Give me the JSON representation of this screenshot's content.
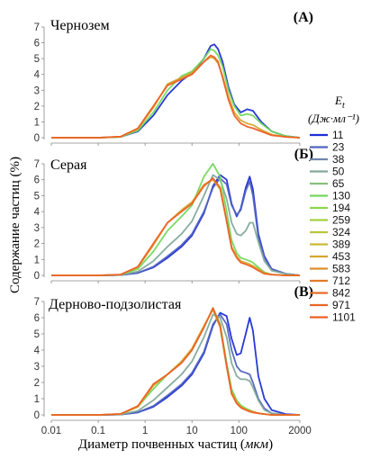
{
  "figure": {
    "y_axis_title": "Содержание частиц (%)",
    "x_axis_title_main": "Диаметр почвенных частиц (",
    "x_axis_title_unit": "мкм",
    "x_axis_title_close": ")",
    "legend_title_symbol": "E",
    "legend_title_sub": "t",
    "legend_title_units": "(Дж·мл⁻¹)"
  },
  "chart_data": {
    "type": "line",
    "x_scale": "log",
    "xlim": [
      0.01,
      2000
    ],
    "x_ticks": [
      "0.01",
      "0.1",
      "1",
      "10",
      "100",
      "2000"
    ],
    "x_tick_values": [
      0.01,
      0.1,
      1,
      10,
      100,
      2000
    ],
    "ylim": [
      0,
      7
    ],
    "y_ticks": [
      "0",
      "1",
      "2",
      "3",
      "4",
      "5",
      "6",
      "7"
    ],
    "legend": {
      "title": "Et (Дж·мл⁻¹)",
      "entries": [
        "11",
        "23",
        "38",
        "50",
        "65",
        "130",
        "194",
        "259",
        "324",
        "389",
        "453",
        "583",
        "712",
        "842",
        "971",
        "1101"
      ],
      "colors": [
        "#1c2fd6",
        "#5163c2",
        "#6f86ad",
        "#82a99a",
        "#87c079",
        "#73d85c",
        "#8bd84a",
        "#a6cf3e",
        "#b9c63a",
        "#c9ba34",
        "#d5a62f",
        "#df8e2b",
        "#e37a28",
        "#e76e26",
        "#ea6524",
        "#ed5f24"
      ]
    },
    "panels": [
      {
        "title": "Чернозем",
        "label": "(A)",
        "series": [
          {
            "name": "11",
            "x": [
              0.01,
              0.1,
              0.3,
              0.7,
              1.5,
              3,
              6,
              10,
              18,
              25,
              30,
              36,
              45,
              60,
              80,
              110,
              150,
              200,
              300,
              500,
              1000,
              2000
            ],
            "y": [
              0,
              0,
              0.05,
              0.4,
              1.4,
              2.7,
              3.6,
              4.1,
              5,
              5.8,
              5.9,
              5.6,
              4.8,
              3.2,
              2.1,
              1.6,
              1.8,
              1.7,
              1.0,
              0.4,
              0.1,
              0
            ]
          },
          {
            "name": "130",
            "x": [
              0.01,
              0.1,
              0.3,
              0.7,
              1.5,
              3,
              6,
              10,
              18,
              25,
              30,
              36,
              45,
              60,
              80,
              110,
              150,
              200,
              300,
              500,
              1000,
              2000
            ],
            "y": [
              0,
              0,
              0.05,
              0.45,
              1.6,
              3.0,
              3.9,
              4.2,
              5,
              5.6,
              5.5,
              5.2,
              4.5,
              3.0,
              2.0,
              1.4,
              1.5,
              1.4,
              0.9,
              0.4,
              0.1,
              0
            ]
          },
          {
            "name": "453",
            "x": [
              0.01,
              0.1,
              0.3,
              0.7,
              1.5,
              3,
              6,
              10,
              18,
              25,
              30,
              36,
              45,
              60,
              80,
              110,
              150,
              200,
              300,
              500,
              1000,
              2000
            ],
            "y": [
              0,
              0,
              0.06,
              0.55,
              1.9,
              3.4,
              3.8,
              4.1,
              4.8,
              5.1,
              5.0,
              4.7,
              3.9,
              2.6,
              1.6,
              1.1,
              0.9,
              0.8,
              0.5,
              0.2,
              0.05,
              0
            ]
          },
          {
            "name": "1101",
            "x": [
              0.01,
              0.1,
              0.3,
              0.7,
              1.5,
              3,
              6,
              10,
              18,
              25,
              30,
              36,
              45,
              60,
              80,
              110,
              150,
              200,
              300,
              500,
              1000,
              2000
            ],
            "y": [
              0,
              0,
              0.07,
              0.6,
              2.0,
              3.3,
              3.7,
              4.0,
              4.8,
              5.2,
              5.1,
              4.8,
              3.8,
              2.4,
              1.4,
              0.9,
              0.7,
              0.6,
              0.4,
              0.15,
              0.05,
              0
            ]
          }
        ]
      },
      {
        "title": "Серая",
        "label": "(Б)",
        "series": [
          {
            "name": "11",
            "x": [
              0.01,
              0.1,
              0.3,
              0.7,
              1.5,
              3,
              6,
              10,
              18,
              28,
              40,
              55,
              70,
              90,
              110,
              140,
              170,
              200,
              260,
              350,
              500,
              1000,
              2000
            ],
            "y": [
              0,
              0,
              0.02,
              0.15,
              0.5,
              1.1,
              1.8,
              2.5,
              3.9,
              5.6,
              6.3,
              6.0,
              4.5,
              3.7,
              4.2,
              5.5,
              6.2,
              5.4,
              2.6,
              1.2,
              0.4,
              0.1,
              0
            ]
          },
          {
            "name": "23",
            "x": [
              0.01,
              0.1,
              0.3,
              0.7,
              1.5,
              3,
              6,
              10,
              18,
              28,
              40,
              55,
              70,
              90,
              110,
              140,
              170,
              200,
              260,
              350,
              500,
              1000,
              2000
            ],
            "y": [
              0,
              0,
              0.02,
              0.16,
              0.55,
              1.2,
              1.9,
              2.6,
              4.0,
              5.5,
              6.1,
              5.7,
              4.4,
              3.8,
              4.1,
              5.3,
              5.9,
              5.0,
              2.4,
              1.1,
              0.4,
              0.1,
              0
            ]
          },
          {
            "name": "50",
            "x": [
              0.01,
              0.1,
              0.3,
              0.7,
              1.5,
              3,
              6,
              10,
              18,
              28,
              40,
              55,
              70,
              90,
              110,
              140,
              170,
              200,
              260,
              350,
              500,
              1000,
              2000
            ],
            "y": [
              0,
              0,
              0.03,
              0.25,
              0.9,
              1.8,
              2.6,
              3.4,
              5.0,
              6.3,
              6.0,
              4.8,
              3.3,
              2.6,
              2.5,
              2.8,
              3.3,
              3.3,
              2.1,
              0.9,
              0.3,
              0.1,
              0
            ]
          },
          {
            "name": "130",
            "x": [
              0.01,
              0.1,
              0.3,
              0.7,
              1.5,
              3,
              6,
              10,
              18,
              28,
              40,
              55,
              70,
              90,
              110,
              140,
              170,
              200,
              260,
              350,
              500,
              1000,
              2000
            ],
            "y": [
              0,
              0,
              0.04,
              0.4,
              1.5,
              2.8,
              3.7,
              4.4,
              6.2,
              7.0,
              6.2,
              4.0,
              2.2,
              1.4,
              1.1,
              1.0,
              0.9,
              0.8,
              0.5,
              0.2,
              0.05,
              0,
              0
            ]
          },
          {
            "name": "453",
            "x": [
              0.01,
              0.1,
              0.3,
              0.7,
              1.5,
              3,
              6,
              10,
              18,
              28,
              40,
              55,
              70,
              90,
              110,
              140,
              170,
              200,
              260,
              350,
              500,
              1000,
              2000
            ],
            "y": [
              0,
              0,
              0.05,
              0.5,
              1.9,
              3.3,
              4.1,
              4.6,
              5.7,
              6.0,
              5.4,
              3.4,
              1.8,
              1.2,
              0.9,
              0.8,
              0.7,
              0.6,
              0.4,
              0.15,
              0.05,
              0,
              0
            ]
          },
          {
            "name": "1101",
            "x": [
              0.01,
              0.1,
              0.3,
              0.7,
              1.5,
              3,
              6,
              10,
              18,
              28,
              40,
              55,
              70,
              90,
              110,
              140,
              170,
              200,
              260,
              350,
              500,
              1000,
              2000
            ],
            "y": [
              0,
              0,
              0.05,
              0.55,
              2.0,
              3.3,
              4.0,
              4.5,
              5.6,
              6.1,
              5.5,
              3.4,
              1.7,
              1.1,
              0.8,
              0.7,
              0.6,
              0.5,
              0.3,
              0.1,
              0.05,
              0,
              0
            ]
          }
        ]
      },
      {
        "title": "Дерново-подзолистая",
        "label": "(В)",
        "series": [
          {
            "name": "11",
            "x": [
              0.01,
              0.1,
              0.3,
              0.7,
              1.5,
              3,
              6,
              10,
              18,
              28,
              40,
              55,
              70,
              90,
              110,
              140,
              170,
              200,
              260,
              350,
              500,
              1000,
              2000
            ],
            "y": [
              0,
              0,
              0.02,
              0.15,
              0.5,
              1.1,
              1.8,
              2.5,
              3.8,
              5.5,
              6.3,
              6.1,
              4.7,
              3.7,
              3.8,
              5.0,
              6.0,
              5.2,
              2.4,
              1.0,
              0.3,
              0.05,
              0
            ]
          },
          {
            "name": "23",
            "x": [
              0.01,
              0.1,
              0.3,
              0.7,
              1.5,
              3,
              6,
              10,
              18,
              28,
              40,
              55,
              70,
              90,
              110,
              140,
              170,
              200,
              260,
              350,
              500,
              1000,
              2000
            ],
            "y": [
              0,
              0,
              0.02,
              0.16,
              0.55,
              1.2,
              1.9,
              2.6,
              3.9,
              5.6,
              6.2,
              5.6,
              4.0,
              3.0,
              2.7,
              2.6,
              2.5,
              2.0,
              1.0,
              0.4,
              0.1,
              0,
              0
            ]
          },
          {
            "name": "50",
            "x": [
              0.01,
              0.1,
              0.3,
              0.7,
              1.5,
              3,
              6,
              10,
              18,
              28,
              40,
              55,
              70,
              90,
              110,
              140,
              170,
              200,
              260,
              350,
              500,
              1000,
              2000
            ],
            "y": [
              0,
              0,
              0.03,
              0.25,
              0.9,
              1.7,
              2.5,
              3.3,
              4.8,
              6.2,
              6.0,
              4.8,
              3.2,
              2.4,
              2.2,
              2.2,
              2.1,
              1.7,
              0.9,
              0.3,
              0.1,
              0,
              0
            ]
          },
          {
            "name": "130",
            "x": [
              0.01,
              0.1,
              0.3,
              0.7,
              1.5,
              3,
              6,
              10,
              18,
              28,
              40,
              55,
              70,
              90,
              110,
              140,
              170,
              200,
              260,
              350,
              500,
              1000,
              2000
            ],
            "y": [
              0,
              0,
              0.05,
              0.5,
              1.6,
              2.5,
              3.3,
              4.0,
              5.4,
              6.6,
              5.6,
              3.2,
              1.6,
              0.9,
              0.6,
              0.4,
              0.3,
              0.2,
              0.1,
              0.05,
              0,
              0,
              0
            ]
          },
          {
            "name": "453",
            "x": [
              0.01,
              0.1,
              0.3,
              0.7,
              1.5,
              3,
              6,
              10,
              18,
              28,
              40,
              55,
              70,
              90,
              110,
              140,
              170,
              200,
              260,
              350,
              500,
              1000,
              2000
            ],
            "y": [
              0,
              0,
              0.05,
              0.5,
              1.8,
              2.5,
              3.3,
              4.1,
              5.5,
              6.5,
              5.4,
              3.0,
              1.4,
              0.8,
              0.5,
              0.35,
              0.25,
              0.2,
              0.1,
              0.05,
              0,
              0,
              0
            ]
          },
          {
            "name": "1101",
            "x": [
              0.01,
              0.1,
              0.3,
              0.7,
              1.5,
              3,
              6,
              10,
              18,
              28,
              40,
              55,
              70,
              90,
              110,
              140,
              170,
              200,
              260,
              350,
              500,
              1000,
              2000
            ],
            "y": [
              0,
              0,
              0.06,
              0.55,
              1.9,
              2.5,
              3.2,
              4.0,
              5.4,
              6.6,
              5.5,
              3.0,
              1.3,
              0.7,
              0.45,
              0.3,
              0.2,
              0.15,
              0.1,
              0.05,
              0,
              0,
              0
            ]
          }
        ]
      }
    ]
  }
}
